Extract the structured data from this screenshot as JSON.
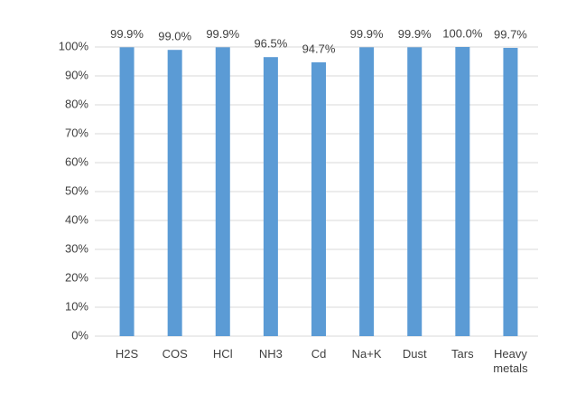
{
  "chart_data": {
    "type": "bar",
    "categories": [
      "H2S",
      "COS",
      "HCl",
      "NH3",
      "Cd",
      "Na+K",
      "Dust",
      "Tars",
      "Heavy metals"
    ],
    "values": [
      99.9,
      99.0,
      99.9,
      96.5,
      94.7,
      99.9,
      99.9,
      100.0,
      99.7
    ],
    "value_labels": [
      "99.9%",
      "99.0%",
      "99.9%",
      "96.5%",
      "94.7%",
      "99.9%",
      "99.9%",
      "100.0%",
      "99.7%"
    ],
    "color": "#5b9bd5",
    "ylim": [
      0,
      100
    ],
    "yticks": [
      {
        "value": 0,
        "label": "0%"
      },
      {
        "value": 10,
        "label": "10%"
      },
      {
        "value": 20,
        "label": "20%"
      },
      {
        "value": 30,
        "label": "30%"
      },
      {
        "value": 40,
        "label": "40%"
      },
      {
        "value": 50,
        "label": "50%"
      },
      {
        "value": 60,
        "label": "60%"
      },
      {
        "value": 70,
        "label": "70%"
      },
      {
        "value": 80,
        "label": "80%"
      },
      {
        "value": 90,
        "label": "90%"
      },
      {
        "value": 100,
        "label": "100%"
      }
    ],
    "grid": true
  }
}
